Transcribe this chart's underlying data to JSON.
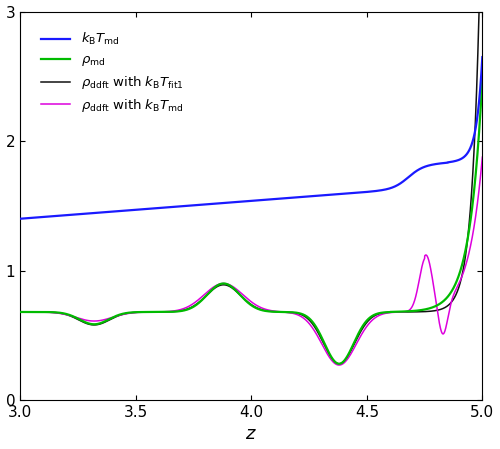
{
  "xlim": [
    3.0,
    5.0
  ],
  "ylim": [
    0.0,
    3.0
  ],
  "xlabel": "z",
  "xticks": [
    3.0,
    3.5,
    4.0,
    4.5,
    5.0
  ],
  "yticks": [
    0,
    1,
    2,
    3
  ],
  "line_colors": {
    "kBT_md": "#1a1aff",
    "rho_md": "#00bb00",
    "rho_ddft_fit1": "#111111",
    "rho_ddft_md": "#dd00dd"
  },
  "line_widths": {
    "kBT_md": 1.6,
    "rho_md": 1.6,
    "rho_ddft_fit1": 1.1,
    "rho_ddft_md": 1.1
  },
  "background_color": "#ffffff"
}
